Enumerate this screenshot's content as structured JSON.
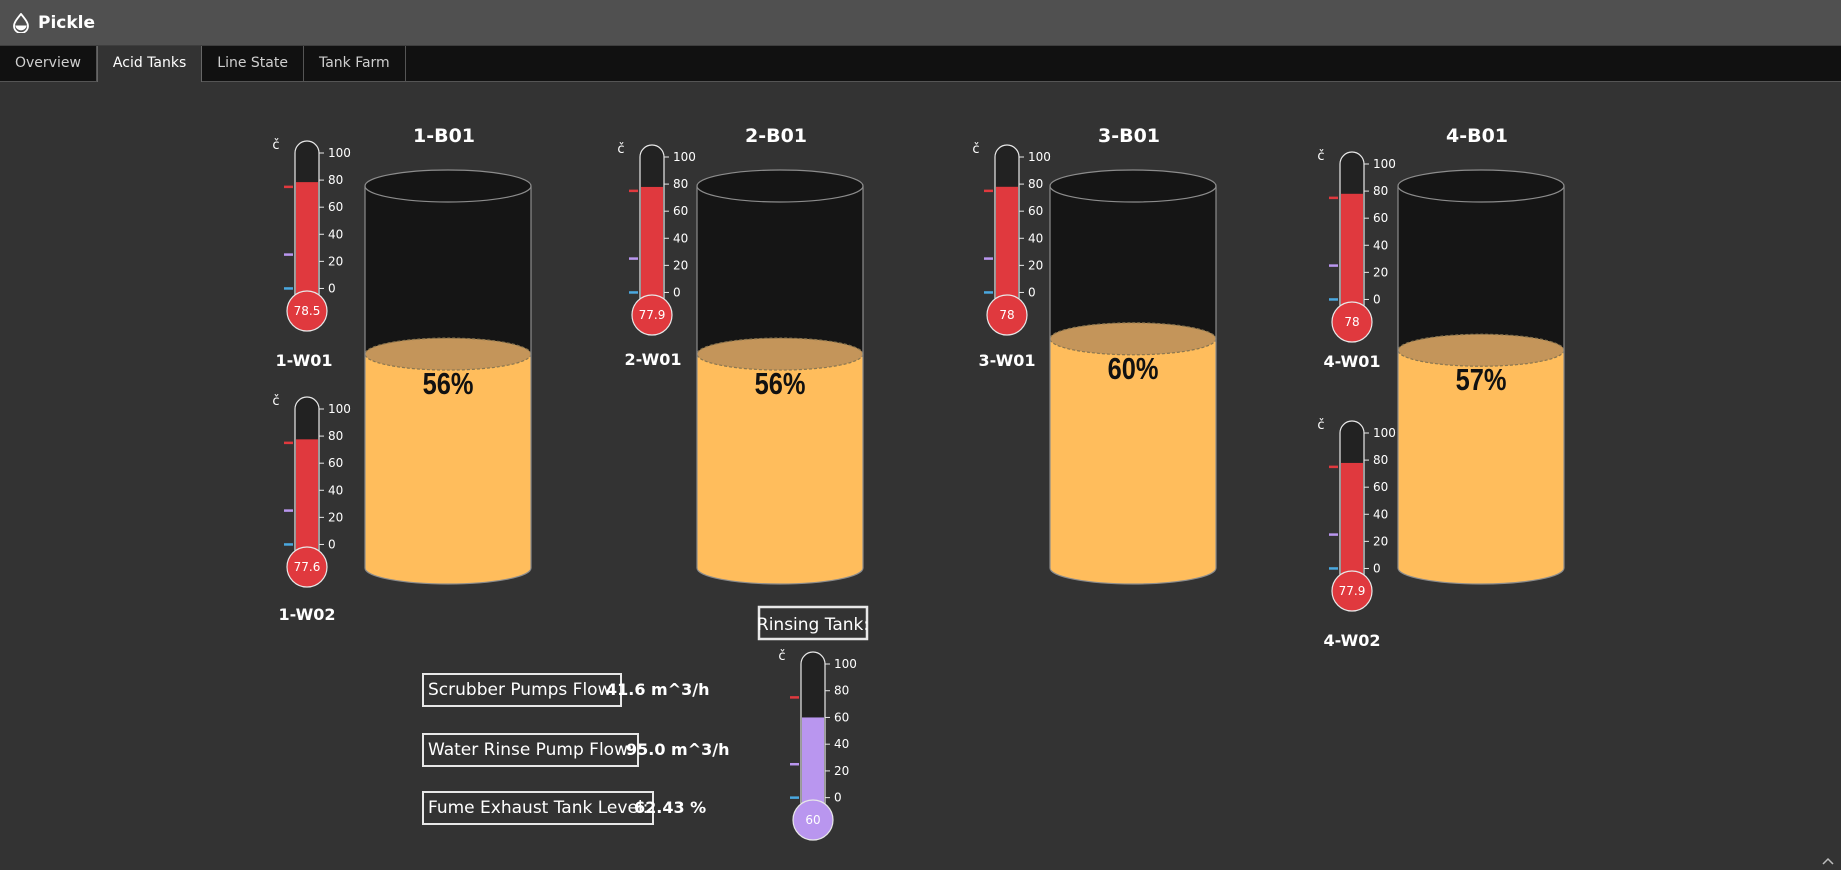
{
  "app": {
    "title": "Pickle"
  },
  "tabs": [
    {
      "label": "Overview",
      "active": false
    },
    {
      "label": "Acid Tanks",
      "active": true
    },
    {
      "label": "Line State",
      "active": false
    },
    {
      "label": "Tank Farm",
      "active": false
    }
  ],
  "colors": {
    "liquid": "#ffbd5c",
    "liquid_surface": "#c4955a",
    "tank_empty": "#151515",
    "thermo_fill": "#e0393e",
    "rinse_fill": "#b996ef",
    "marker_high": "#e0393e",
    "marker_mid": "#b996ef",
    "marker_low": "#4aa8e0"
  },
  "tanks": [
    {
      "name": "1-B01",
      "level_percent": 56,
      "label": "56%"
    },
    {
      "name": "2-B01",
      "level_percent": 56,
      "label": "56%"
    },
    {
      "name": "3-B01",
      "level_percent": 60,
      "label": "60%"
    },
    {
      "name": "4-B01",
      "level_percent": 57,
      "label": "57%"
    }
  ],
  "thermometers": [
    {
      "name": "1-W01",
      "value": 78.5,
      "value_label": "78.5",
      "unit": "č"
    },
    {
      "name": "1-W02",
      "value": 77.6,
      "value_label": "77.6",
      "unit": "č"
    },
    {
      "name": "2-W01",
      "value": 77.9,
      "value_label": "77.9",
      "unit": "č"
    },
    {
      "name": "3-W01",
      "value": 78,
      "value_label": "78",
      "unit": "č"
    },
    {
      "name": "4-W01",
      "value": 78,
      "value_label": "78",
      "unit": "č"
    },
    {
      "name": "4-W02",
      "value": 77.9,
      "value_label": "77.9",
      "unit": "č"
    }
  ],
  "rinsing_tank": {
    "label": "Rinsing Tank:",
    "value": 60,
    "value_label": "60",
    "unit": "č"
  },
  "thermo_scale": {
    "min": -10,
    "max": 100,
    "tick_labels": [
      "100",
      "80",
      "60",
      "40",
      "20",
      "0"
    ],
    "tick_values": [
      100,
      80,
      60,
      40,
      20,
      0
    ],
    "marker_values": [
      75,
      25,
      0
    ]
  },
  "info": {
    "scrubber_label": "Scrubber Pumps Flow:",
    "scrubber_value": "41.6 m^3/h",
    "rinse_pump_label": "Water Rinse Pump Flow:",
    "rinse_pump_value": "95.0 m^3/h",
    "fume_label": "Fume Exhaust Tank Level:",
    "fume_value": "62.43 %"
  }
}
